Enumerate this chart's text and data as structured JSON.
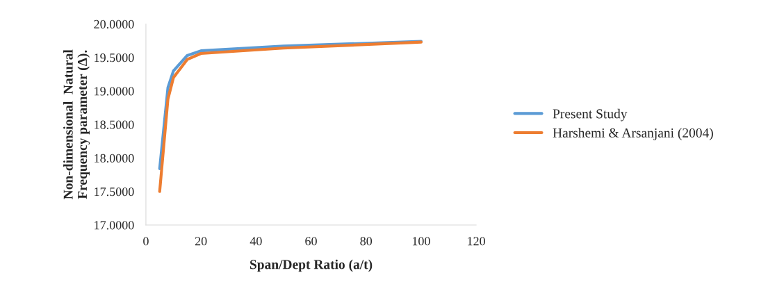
{
  "chart_data": {
    "type": "line",
    "xlabel": "Span/Dept Ratio (a/t)",
    "ylabel": "Non-dimensional  Natural\nFrequency parameter (Δ).",
    "xlim": [
      0,
      120
    ],
    "xticks": [
      0,
      20,
      40,
      60,
      80,
      100,
      120
    ],
    "ylim": [
      17,
      20
    ],
    "yticks": [
      {
        "value": 17,
        "label": "17.0000"
      },
      {
        "value": 17.5,
        "label": "17.5000"
      },
      {
        "value": 18,
        "label": "18.0000"
      },
      {
        "value": 18.5,
        "label": "18.5000"
      },
      {
        "value": 19,
        "label": "19.0000"
      },
      {
        "value": 19.5,
        "label": "19.5000"
      },
      {
        "value": 20,
        "label": "20.0000"
      }
    ],
    "grid": false,
    "legend": "right",
    "marker": "none",
    "line_style": "solid",
    "series": [
      {
        "name": "Present Study",
        "color": "#5b9bd5",
        "x": [
          5,
          8,
          10,
          15,
          20,
          50,
          100
        ],
        "values": [
          17.84,
          19.05,
          19.3,
          19.53,
          19.6,
          19.67,
          19.74
        ]
      },
      {
        "name": "Harshemi & Arsanjani (2004)",
        "color": "#ed7d31",
        "x": [
          5,
          8,
          10,
          15,
          20,
          50,
          100
        ],
        "values": [
          17.5,
          18.88,
          19.2,
          19.47,
          19.56,
          19.64,
          19.73
        ]
      }
    ]
  }
}
